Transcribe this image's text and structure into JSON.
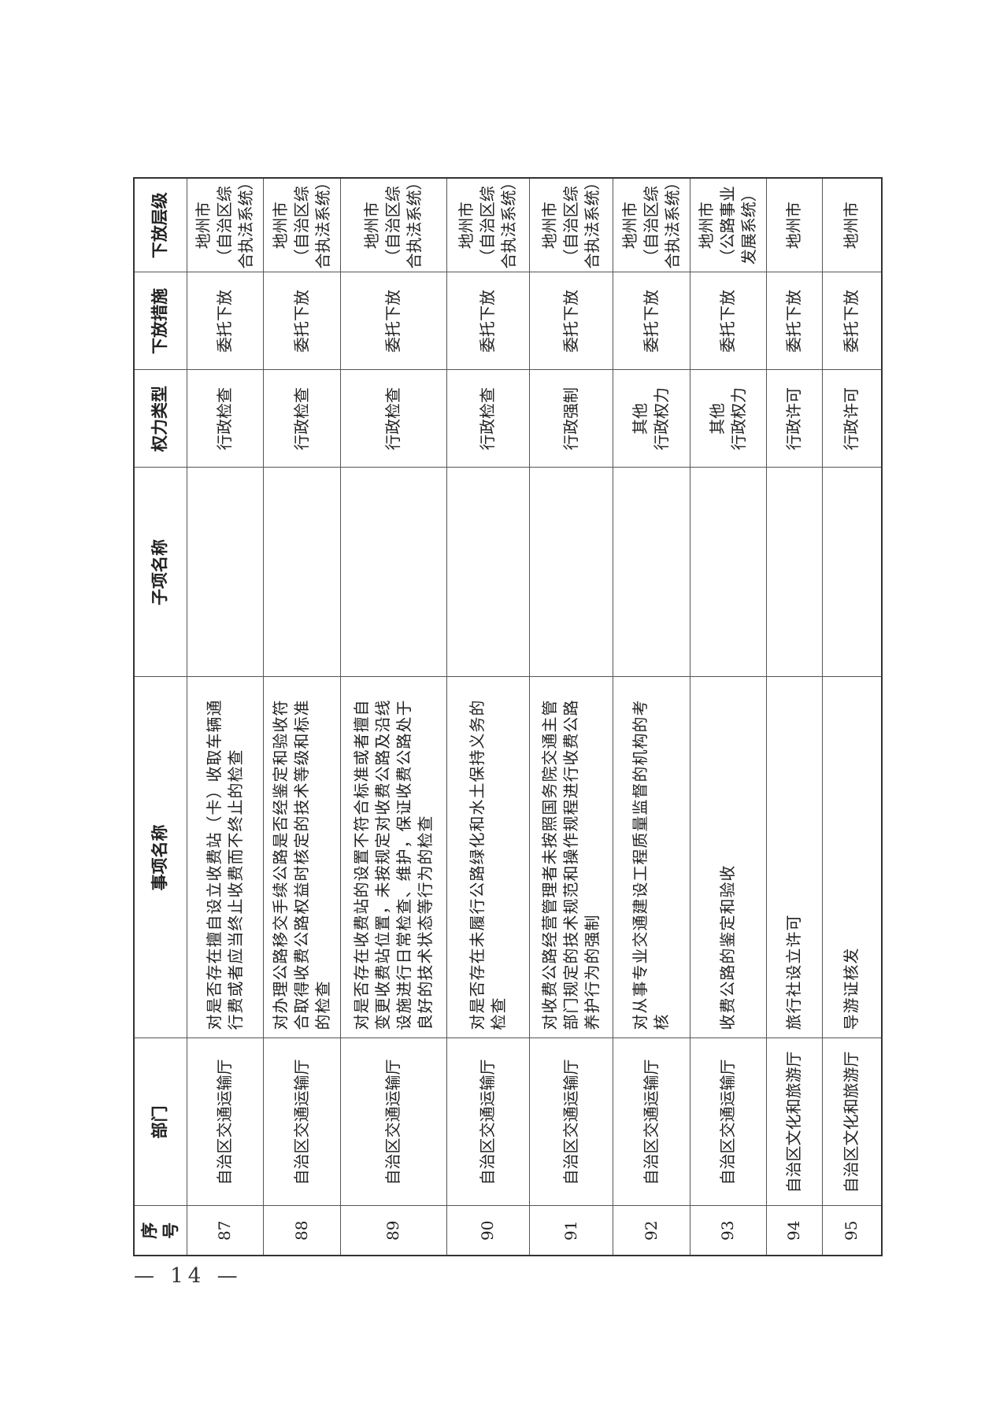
{
  "headers": [
    "序号",
    "部门",
    "事项名称",
    "子项名称",
    "权力类型",
    "下放措施",
    "下放层级"
  ],
  "rows": [
    {
      "no": "87",
      "dept": "自治区交通运输厅",
      "item": "对是否存在擅自设立收费站（卡）收取车辆通行费或者应当终止收费而不终止的检查",
      "sub": "",
      "type": "行政检查",
      "measure": "委托下放",
      "level": "地州市\n（自治区综合执法系统）"
    },
    {
      "no": "88",
      "dept": "自治区交通运输厅",
      "item": "对办理公路移交手续公路是否经鉴定和验收符合取得收费公路权益时核定的技术等级和标准的检查",
      "sub": "",
      "type": "行政检查",
      "measure": "委托下放",
      "level": "地州市\n（自治区综合执法系统）"
    },
    {
      "no": "89",
      "dept": "自治区交通运输厅",
      "item": "对是否存在收费站的设置不符合标准或者擅自变更收费站位置，未按规定对收费公路及沿线设施进行日常检查、维护，保证收费公路处于良好的技术状态等行为的检查",
      "sub": "",
      "type": "行政检查",
      "measure": "委托下放",
      "level": "地州市\n（自治区综合执法系统）"
    },
    {
      "no": "90",
      "dept": "自治区交通运输厅",
      "item": "对是否存在未履行公路绿化和水土保持义务的检查",
      "sub": "",
      "type": "行政检查",
      "measure": "委托下放",
      "level": "地州市\n（自治区综合执法系统）"
    },
    {
      "no": "91",
      "dept": "自治区交通运输厅",
      "item": "对收费公路经营管理者未按照国务院交通主管部门规定的技术规范和操作规程进行收费公路养护行为的强制",
      "sub": "",
      "type": "行政强制",
      "measure": "委托下放",
      "level": "地州市\n（自治区综合执法系统）"
    },
    {
      "no": "92",
      "dept": "自治区交通运输厅",
      "item": "对从事专业交通建设工程质量监督的机构的考核",
      "sub": "",
      "type": "其他\n行政权力",
      "measure": "委托下放",
      "level": "地州市\n（自治区综合执法系统）"
    },
    {
      "no": "93",
      "dept": "自治区交通运输厅",
      "item": "收费公路的鉴定和验收",
      "sub": "",
      "type": "其他\n行政权力",
      "measure": "委托下放",
      "level": "地州市\n（公路事业发展系统）"
    },
    {
      "no": "94",
      "dept": "自治区文化和旅游厅",
      "item": "旅行社设立许可",
      "sub": "",
      "type": "行政许可",
      "measure": "委托下放",
      "level": "地州市"
    },
    {
      "no": "95",
      "dept": "自治区文化和旅游厅",
      "item": "导游证核发",
      "sub": "",
      "type": "行政许可",
      "measure": "委托下放",
      "level": "地州市"
    }
  ],
  "page_number": "— 14 —"
}
